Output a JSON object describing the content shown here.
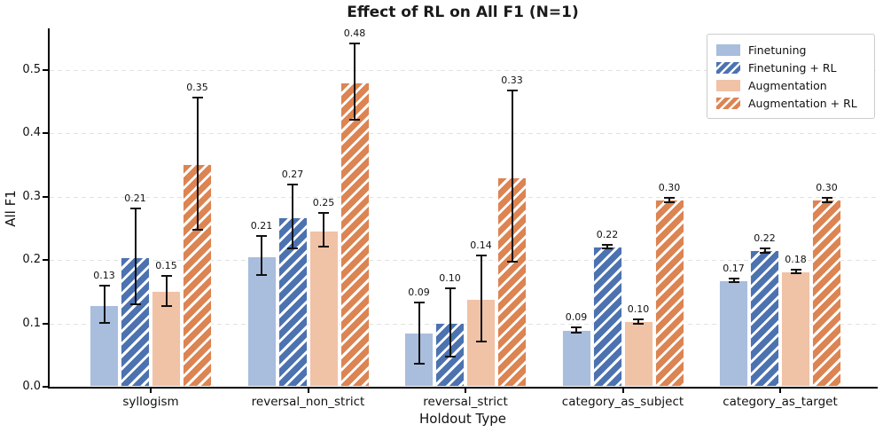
{
  "chart_data": {
    "type": "bar",
    "title": "Effect of RL on All F1 (N=1)",
    "xlabel": "Holdout Type",
    "ylabel": "All F1",
    "categories": [
      "syllogism",
      "reversal_non_strict",
      "reversal_strict",
      "category_as_subject",
      "category_as_target"
    ],
    "ylim": [
      0.0,
      0.57
    ],
    "yticks": [
      "0.0",
      "0.1",
      "0.2",
      "0.3",
      "0.4",
      "0.5"
    ],
    "grid": "horizontal-dashed",
    "legend_position": "upper right",
    "colors": {
      "finetuning": "#A9BDDD",
      "finetuning_rl": "#4C72B0",
      "augmentation": "#F0C2A6",
      "augmentation_rl": "#DC8452",
      "error_bar": "#111111",
      "grid": "#e2e2e2",
      "spine": "#000000",
      "legend_border": "#cccccc"
    },
    "series": [
      {
        "name": "Finetuning",
        "color": "#A9BDDD",
        "hatch": false,
        "values": [
          0.129,
          0.206,
          0.085,
          0.09,
          0.168
        ],
        "err_low": [
          0.101,
          0.177,
          0.037,
          0.086,
          0.165
        ],
        "err_high": [
          0.16,
          0.238,
          0.133,
          0.094,
          0.171
        ],
        "labels": [
          "0.13",
          "0.21",
          "0.09",
          "0.09",
          "0.17"
        ]
      },
      {
        "name": "Finetuning + RL",
        "color": "#4C72B0",
        "hatch": true,
        "values": [
          0.205,
          0.267,
          0.101,
          0.221,
          0.215
        ],
        "err_low": [
          0.13,
          0.218,
          0.048,
          0.218,
          0.212
        ],
        "err_high": [
          0.281,
          0.319,
          0.156,
          0.224,
          0.218
        ],
        "labels": [
          "0.21",
          "0.27",
          "0.10",
          "0.22",
          "0.22"
        ]
      },
      {
        "name": "Augmentation",
        "color": "#F0C2A6",
        "hatch": false,
        "values": [
          0.151,
          0.247,
          0.138,
          0.103,
          0.182
        ],
        "err_low": [
          0.128,
          0.221,
          0.071,
          0.1,
          0.179
        ],
        "err_high": [
          0.175,
          0.274,
          0.207,
          0.106,
          0.185
        ],
        "labels": [
          "0.15",
          "0.25",
          "0.14",
          "0.10",
          "0.18"
        ]
      },
      {
        "name": "Augmentation + RL",
        "color": "#DC8452",
        "hatch": true,
        "values": [
          0.351,
          0.481,
          0.331,
          0.295,
          0.295
        ],
        "err_low": [
          0.248,
          0.421,
          0.197,
          0.292,
          0.292
        ],
        "err_high": [
          0.456,
          0.542,
          0.468,
          0.298,
          0.298
        ],
        "labels": [
          "0.35",
          "0.48",
          "0.33",
          "0.30",
          "0.30"
        ]
      }
    ]
  }
}
